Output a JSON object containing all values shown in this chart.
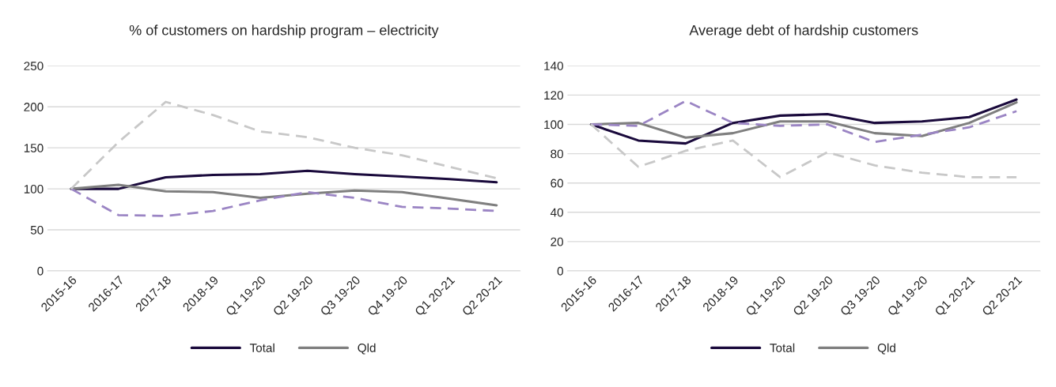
{
  "chart_data": [
    {
      "type": "line",
      "title": "% of customers on hardship program – electricity",
      "categories": [
        "2015-16",
        "2016-17",
        "2017-18",
        "2018-19",
        "Q1 19-20",
        "Q2 19-20",
        "Q3 19-20",
        "Q4 19-20",
        "Q1 20-21",
        "Q2 20-21"
      ],
      "ylim": [
        0,
        250
      ],
      "yticks": [
        0,
        50,
        100,
        150,
        200,
        250
      ],
      "grid": "y",
      "legend": "bottom",
      "marker": "none",
      "series": [
        {
          "name": "Total",
          "color": "#1a0a3c",
          "line_style": "solid",
          "values": [
            100,
            100,
            114,
            117,
            118,
            122,
            118,
            115,
            112,
            108
          ]
        },
        {
          "name": "Qld",
          "color": "#7f7f7f",
          "line_style": "solid",
          "values": [
            100,
            105,
            97,
            96,
            89,
            94,
            98,
            96,
            88,
            80
          ]
        },
        {
          "color": "#9b85c4",
          "line_style": "dashed",
          "values": [
            100,
            68,
            67,
            73,
            86,
            96,
            89,
            78,
            76,
            73
          ]
        },
        {
          "color": "#c8c8c8",
          "line_style": "dashed",
          "values": [
            100,
            157,
            206,
            190,
            170,
            163,
            150,
            141,
            127,
            113
          ]
        }
      ]
    },
    {
      "type": "line",
      "title": "Average debt of hardship customers",
      "categories": [
        "2015-16",
        "2016-17",
        "2017-18",
        "2018-19",
        "Q1 19-20",
        "Q2 19-20",
        "Q3 19-20",
        "Q4 19-20",
        "Q1 20-21",
        "Q2 20-21"
      ],
      "ylim": [
        0,
        140
      ],
      "yticks": [
        0,
        20,
        40,
        60,
        80,
        100,
        120,
        140
      ],
      "grid": "y",
      "legend": "bottom",
      "marker": "none",
      "series": [
        {
          "name": "Total",
          "color": "#1a0a3c",
          "line_style": "solid",
          "values": [
            100,
            89,
            87,
            101,
            106,
            107,
            101,
            102,
            105,
            117
          ]
        },
        {
          "name": "Qld",
          "color": "#7f7f7f",
          "line_style": "solid",
          "values": [
            100,
            101,
            91,
            94,
            102,
            102,
            94,
            92,
            101,
            115
          ]
        },
        {
          "color": "#9b85c4",
          "line_style": "dashed",
          "values": [
            100,
            99,
            116,
            101,
            99,
            100,
            88,
            93,
            98,
            109
          ]
        },
        {
          "color": "#c8c8c8",
          "line_style": "dashed",
          "values": [
            100,
            71,
            82,
            89,
            64,
            81,
            72,
            67,
            64,
            64
          ]
        }
      ]
    }
  ]
}
